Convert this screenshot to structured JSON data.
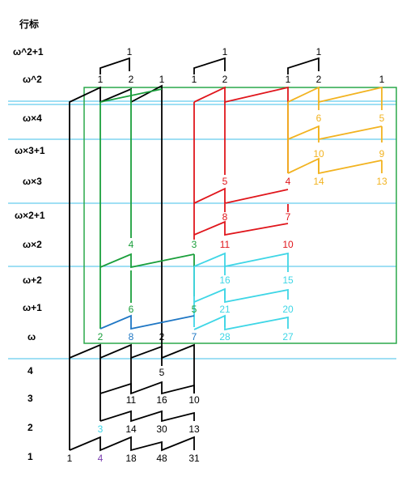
{
  "header": "行标",
  "rows": [
    "ω^2+1",
    "ω^2",
    "ω×4",
    "ω×3+1",
    "ω×3",
    "ω×2+1",
    "ω×2",
    "ω+2",
    "ω+1",
    "ω",
    "4",
    "3",
    "2",
    "1"
  ],
  "colors": {
    "black": "#000000",
    "green": "#1a9f3b",
    "red": "#e0161c",
    "yellow": "#f2b320",
    "cyan": "#3fd6e6",
    "blue": "#1f77c4",
    "purple": "#7b3fb0",
    "box": "#2aa84a",
    "hline": "#66ccee"
  },
  "numbers": [
    {
      "t": "1",
      "c": "black"
    },
    {
      "t": "1",
      "c": "black"
    },
    {
      "t": "1",
      "c": "black"
    },
    {
      "t": "1",
      "c": "black"
    },
    {
      "t": "2",
      "c": "black"
    },
    {
      "t": "1",
      "c": "black"
    },
    {
      "t": "1",
      "c": "black"
    },
    {
      "t": "2",
      "c": "black"
    },
    {
      "t": "1",
      "c": "black"
    },
    {
      "t": "2",
      "c": "black"
    },
    {
      "t": "1",
      "c": "black"
    },
    {
      "t": "6",
      "c": "yellow"
    },
    {
      "t": "5",
      "c": "yellow"
    },
    {
      "t": "10",
      "c": "yellow"
    },
    {
      "t": "9",
      "c": "yellow"
    },
    {
      "t": "5",
      "c": "red"
    },
    {
      "t": "4",
      "c": "red"
    },
    {
      "t": "14",
      "c": "yellow"
    },
    {
      "t": "13",
      "c": "yellow"
    },
    {
      "t": "8",
      "c": "red"
    },
    {
      "t": "7",
      "c": "red"
    },
    {
      "t": "4",
      "c": "green"
    },
    {
      "t": "3",
      "c": "green"
    },
    {
      "t": "11",
      "c": "red"
    },
    {
      "t": "10",
      "c": "red"
    },
    {
      "t": "16",
      "c": "cyan"
    },
    {
      "t": "15",
      "c": "cyan"
    },
    {
      "t": "6",
      "c": "green"
    },
    {
      "t": "5",
      "c": "green"
    },
    {
      "t": "21",
      "c": "cyan"
    },
    {
      "t": "20",
      "c": "cyan"
    },
    {
      "t": "2",
      "c": "green"
    },
    {
      "t": "8",
      "c": "blue"
    },
    {
      "t": "2",
      "c": "black"
    },
    {
      "t": "7",
      "c": "blue"
    },
    {
      "t": "28",
      "c": "cyan"
    },
    {
      "t": "27",
      "c": "cyan"
    },
    {
      "t": "5",
      "c": "black"
    },
    {
      "t": "11",
      "c": "black"
    },
    {
      "t": "16",
      "c": "black"
    },
    {
      "t": "10",
      "c": "black"
    },
    {
      "t": "3",
      "c": "cyan"
    },
    {
      "t": "14",
      "c": "black"
    },
    {
      "t": "30",
      "c": "black"
    },
    {
      "t": "13",
      "c": "black"
    },
    {
      "t": "1",
      "c": "black"
    },
    {
      "t": "4",
      "c": "purple"
    },
    {
      "t": "18",
      "c": "black"
    },
    {
      "t": "48",
      "c": "black"
    },
    {
      "t": "31",
      "c": "black"
    }
  ]
}
